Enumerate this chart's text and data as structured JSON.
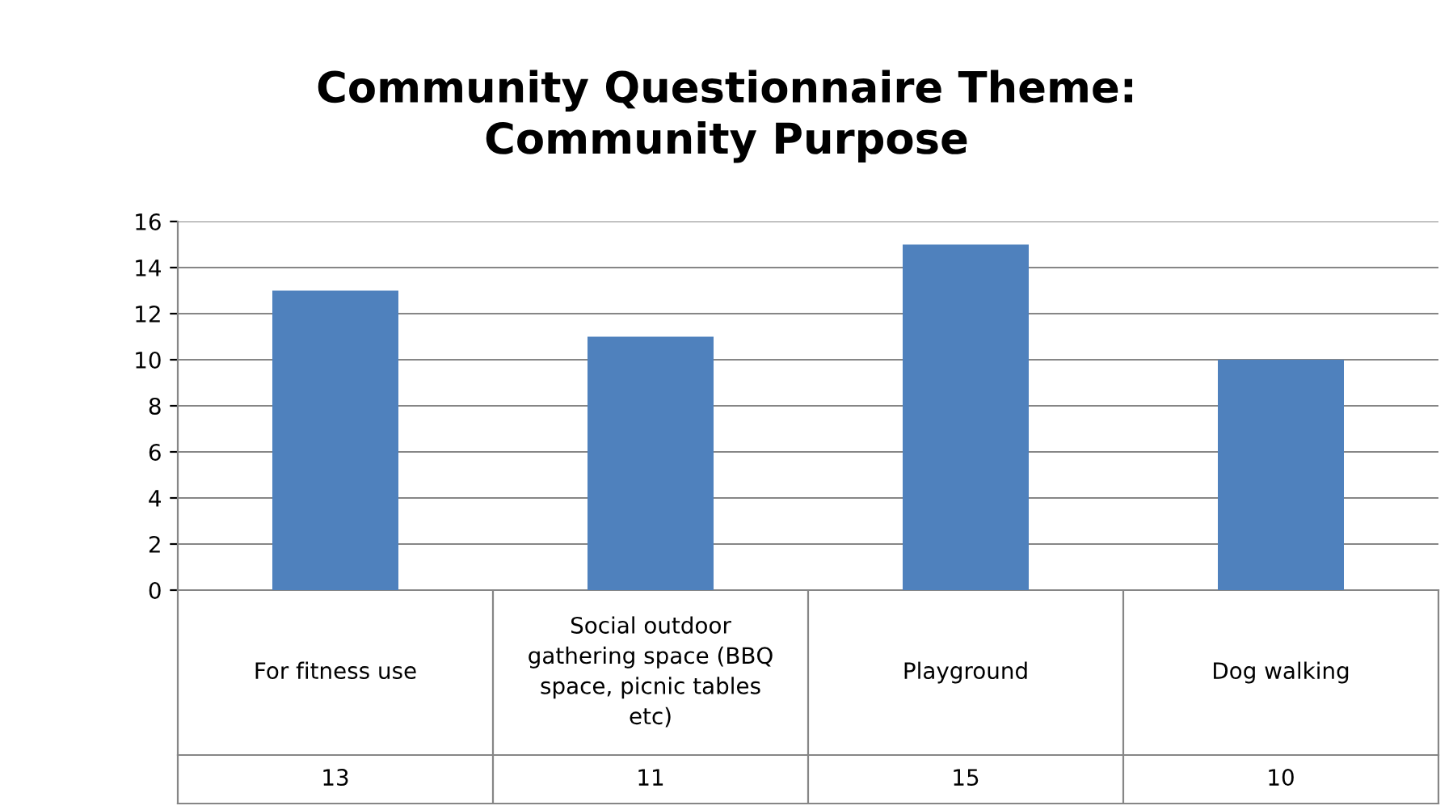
{
  "chart_data": {
    "type": "bar",
    "title": "Community Questionnaire Theme:\nCommunity Purpose",
    "categories": [
      "For fitness use",
      "Social outdoor\ngathering space (BBQ\nspace, picnic tables\netc)",
      "Playground",
      "Dog walking"
    ],
    "series": [
      {
        "color": "#4f81bd",
        "values": [
          13,
          11,
          15,
          10
        ]
      }
    ],
    "ylim": [
      0,
      16
    ],
    "yticks": [
      0,
      2,
      4,
      6,
      8,
      10,
      12,
      14,
      16
    ],
    "grid": "y",
    "data_labels": true
  }
}
